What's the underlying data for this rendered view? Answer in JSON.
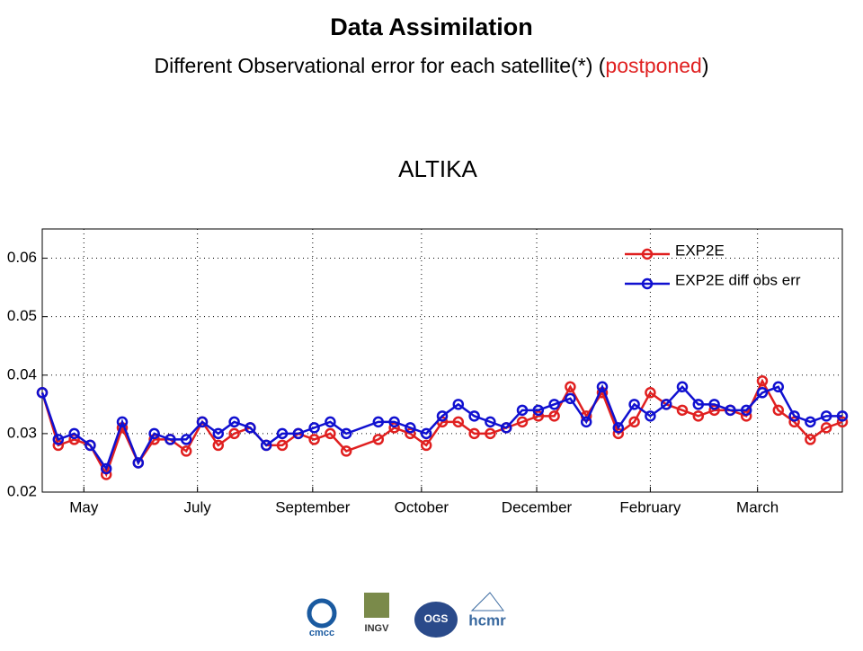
{
  "slide": {
    "title": "Data Assimilation",
    "subtitle_parts": [
      "Different Observational error for each satellite(*) (",
      "postponed",
      ")"
    ],
    "logos": [
      "cmcc",
      "INGV",
      "OGS",
      "hcmr"
    ]
  },
  "chart_data": {
    "type": "line",
    "title": "ALTIKA",
    "x": [
      0,
      1,
      2,
      3,
      4,
      5,
      6,
      7,
      8,
      9,
      10,
      11,
      12,
      13,
      14,
      15,
      16,
      17,
      18,
      19,
      21,
      22,
      23,
      24,
      25,
      26,
      27,
      28,
      29,
      30,
      31,
      32,
      33,
      34,
      35,
      36,
      37,
      38,
      39,
      40,
      41,
      42,
      43,
      44,
      45,
      46,
      47,
      48,
      49,
      50
    ],
    "series": [
      {
        "name": "EXP2E",
        "color": "#e02020",
        "values": [
          0.037,
          0.028,
          0.029,
          0.028,
          0.023,
          0.031,
          0.025,
          0.029,
          0.029,
          0.027,
          0.032,
          0.028,
          0.03,
          0.031,
          0.028,
          0.028,
          0.03,
          0.029,
          0.03,
          0.027,
          0.029,
          0.031,
          0.03,
          0.028,
          0.032,
          0.032,
          0.03,
          0.03,
          0.031,
          0.032,
          0.033,
          0.033,
          0.038,
          0.033,
          0.037,
          0.03,
          0.032,
          0.037,
          0.035,
          0.034,
          0.033,
          0.034,
          0.034,
          0.033,
          0.039,
          0.034,
          0.032,
          0.029,
          0.031,
          0.032
        ]
      },
      {
        "name": "EXP2E diff obs err",
        "color": "#1010d0",
        "values": [
          0.037,
          0.029,
          0.03,
          0.028,
          0.024,
          0.032,
          0.025,
          0.03,
          0.029,
          0.029,
          0.032,
          0.03,
          0.032,
          0.031,
          0.028,
          0.03,
          0.03,
          0.031,
          0.032,
          0.03,
          0.032,
          0.032,
          0.031,
          0.03,
          0.033,
          0.035,
          0.033,
          0.032,
          0.031,
          0.034,
          0.034,
          0.035,
          0.036,
          0.032,
          0.038,
          0.031,
          0.035,
          0.033,
          0.035,
          0.038,
          0.035,
          0.035,
          0.034,
          0.034,
          0.037,
          0.038,
          0.033,
          0.032,
          0.033,
          0.033
        ]
      }
    ],
    "xlim": [
      0,
      50
    ],
    "xticks": [
      {
        "value": 2.6,
        "label": "May"
      },
      {
        "value": 9.7,
        "label": "July"
      },
      {
        "value": 16.9,
        "label": "September"
      },
      {
        "value": 23.7,
        "label": "October"
      },
      {
        "value": 30.9,
        "label": "December"
      },
      {
        "value": 38.0,
        "label": "February"
      },
      {
        "value": 44.7,
        "label": "March"
      }
    ],
    "ylim": [
      0.02,
      0.065
    ],
    "yticks": [
      0.02,
      0.03,
      0.04,
      0.05,
      0.06
    ],
    "grid": true,
    "legend": "upper right"
  }
}
